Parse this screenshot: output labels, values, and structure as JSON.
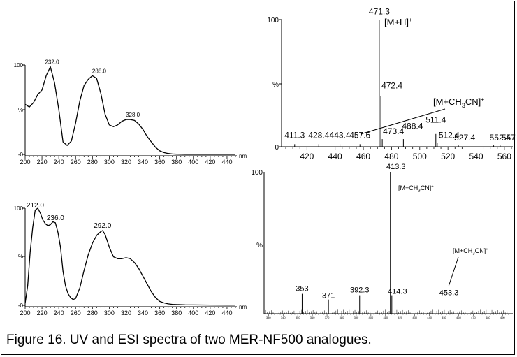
{
  "caption": "Figure 16. UV and ESI spectra of two MER-NF500 analogues.",
  "chart_data": [
    {
      "id": "uv1",
      "type": "line",
      "x_unit": "nm",
      "y_ticks": [
        "100",
        "%",
        "-0"
      ],
      "xlim": [
        200,
        450
      ],
      "ylim": [
        0,
        100
      ],
      "x_ticks": [
        200,
        220,
        240,
        260,
        280,
        300,
        320,
        340,
        360,
        380,
        400,
        420,
        440
      ],
      "x": [
        200,
        205,
        210,
        215,
        220,
        225,
        230,
        235,
        240,
        245,
        250,
        255,
        260,
        265,
        270,
        275,
        280,
        285,
        290,
        295,
        300,
        305,
        310,
        315,
        320,
        325,
        330,
        335,
        340,
        345,
        350,
        355,
        360,
        365,
        370,
        375,
        380,
        390,
        400,
        420,
        440,
        450
      ],
      "y": [
        56,
        53,
        58,
        67,
        72,
        88,
        98,
        80,
        50,
        14,
        10,
        15,
        35,
        60,
        77,
        84,
        88,
        85,
        68,
        45,
        33,
        31,
        33,
        37,
        39,
        39,
        38,
        34,
        28,
        20,
        14,
        8,
        4,
        2,
        1,
        0.5,
        0.2,
        0,
        0,
        0,
        0,
        0
      ],
      "peak_labels": [
        {
          "x": 232,
          "y": 98,
          "text": "232.0"
        },
        {
          "x": 288,
          "y": 88,
          "text": "288.0"
        },
        {
          "x": 328,
          "y": 39,
          "text": "328.0"
        }
      ]
    },
    {
      "id": "uv2",
      "type": "line",
      "x_unit": "nm",
      "y_ticks": [
        "100",
        "%",
        "-0"
      ],
      "xlim": [
        200,
        450
      ],
      "ylim": [
        0,
        100
      ],
      "x_ticks": [
        200,
        220,
        240,
        260,
        280,
        300,
        320,
        340,
        360,
        380,
        400,
        420,
        440
      ],
      "x": [
        200,
        203,
        206,
        209,
        212,
        215,
        218,
        221,
        224,
        227,
        230,
        233,
        236,
        239,
        242,
        245,
        248,
        251,
        254,
        257,
        260,
        265,
        270,
        275,
        280,
        285,
        290,
        292,
        295,
        300,
        305,
        310,
        315,
        320,
        325,
        330,
        335,
        340,
        345,
        350,
        355,
        360,
        365,
        370,
        375,
        380,
        390,
        400,
        420,
        440,
        450
      ],
      "y": [
        2,
        20,
        55,
        80,
        98,
        100,
        95,
        88,
        84,
        82,
        83,
        86,
        85,
        75,
        60,
        35,
        20,
        12,
        8,
        6,
        7,
        18,
        36,
        52,
        64,
        72,
        76,
        77,
        73,
        60,
        50,
        48,
        48,
        49,
        48,
        44,
        38,
        30,
        22,
        14,
        8,
        4,
        2.5,
        1.5,
        1,
        0.8,
        0.5,
        0.4,
        0.3,
        0.2,
        0.2
      ],
      "peak_labels": [
        {
          "x": 212,
          "y": 98,
          "text": "212.0"
        },
        {
          "x": 236,
          "y": 85,
          "text": "236.0"
        },
        {
          "x": 292,
          "y": 77,
          "text": "292.0"
        }
      ]
    },
    {
      "id": "ms1",
      "type": "bar",
      "y_ticks": [
        "100",
        "%",
        "0"
      ],
      "xlim": [
        402,
        566
      ],
      "ylim": [
        0,
        100
      ],
      "x_ticks": [
        420,
        440,
        460,
        480,
        500,
        520,
        540,
        560
      ],
      "peaks": [
        {
          "x": 411.3,
          "y": 2
        },
        {
          "x": 428.4,
          "y": 2
        },
        {
          "x": 443.4,
          "y": 2
        },
        {
          "x": 457.6,
          "y": 2
        },
        {
          "x": 471.3,
          "y": 100
        },
        {
          "x": 472.4,
          "y": 40
        },
        {
          "x": 473.4,
          "y": 6
        },
        {
          "x": 488.4,
          "y": 6
        },
        {
          "x": 511.4,
          "y": 10
        },
        {
          "x": 512.4,
          "y": 3
        },
        {
          "x": 527.4,
          "y": 1
        },
        {
          "x": 552.4,
          "y": 1
        },
        {
          "x": 557,
          "y": 1
        }
      ],
      "peak_labels": [
        "411.3",
        "428.4",
        "443.4",
        "457.6",
        "471.3",
        "472.4",
        "473.4",
        "488.4",
        "511.4",
        "512.4",
        "527.4",
        "552.4",
        "557"
      ],
      "annotations": [
        {
          "text": "[M+H]",
          "sup": "+"
        },
        {
          "text": "[M+CH",
          "sub": "3",
          "tail": "CN]",
          "sup": "+"
        }
      ]
    },
    {
      "id": "ms2",
      "type": "bar",
      "y_ticks": [
        "100",
        "%"
      ],
      "xlim": [
        327,
        497
      ],
      "ylim": [
        0,
        100
      ],
      "x_ticks": [
        330,
        340,
        350,
        360,
        370,
        380,
        390,
        400,
        410,
        420,
        430,
        440,
        450,
        460,
        470,
        480,
        490
      ],
      "peaks": [
        {
          "x": 353,
          "y": 14
        },
        {
          "x": 371,
          "y": 10
        },
        {
          "x": 392.3,
          "y": 13
        },
        {
          "x": 413.3,
          "y": 100
        },
        {
          "x": 414.3,
          "y": 13
        },
        {
          "x": 453.3,
          "y": 12
        }
      ],
      "peak_labels": [
        "353",
        "371",
        "392.3",
        "413.3",
        "414.3",
        "453.3"
      ],
      "annotations": [
        {
          "text": "[M+CH",
          "sub": "3",
          "tail": "CN]",
          "sup": "+"
        },
        {
          "text": "[M+CH",
          "sub": "3",
          "tail": "CN]",
          "sup": "+"
        }
      ]
    }
  ]
}
